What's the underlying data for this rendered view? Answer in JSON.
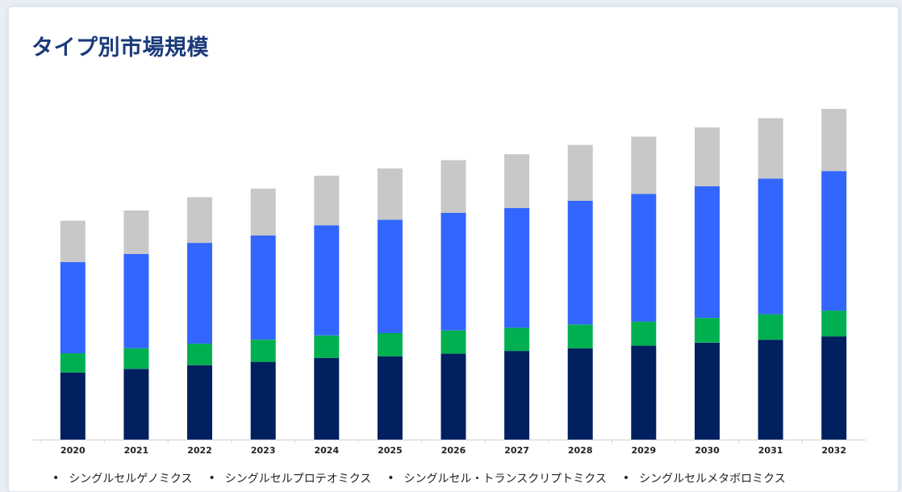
{
  "title": "タイプ別市場規模",
  "chart_data": {
    "type": "bar",
    "stacked": true,
    "title": "タイプ別市場規模",
    "xlabel": "",
    "ylabel": "",
    "grid": false,
    "legend_position": "bottom",
    "ylim": [
      0,
      100
    ],
    "categories": [
      "2020",
      "2021",
      "2022",
      "2023",
      "2024",
      "2025",
      "2026",
      "2027",
      "2028",
      "2029",
      "2030",
      "2031",
      "2032"
    ],
    "series": [
      {
        "name": "シングルセルゲノミクス",
        "color": "#002060",
        "values": [
          20.3,
          21.4,
          22.5,
          23.5,
          24.7,
          25.2,
          26.0,
          26.8,
          27.6,
          28.4,
          29.3,
          30.2,
          31.2
        ]
      },
      {
        "name": "シングルセルプロテオミクス",
        "color": "#00b050",
        "values": [
          5.8,
          6.2,
          6.5,
          6.7,
          6.8,
          7.0,
          7.0,
          7.0,
          7.2,
          7.3,
          7.5,
          7.7,
          7.8
        ]
      },
      {
        "name": "シングルセル・トランスクリプトミクス",
        "color": "#3366ff",
        "values": [
          27.6,
          28.5,
          30.5,
          31.5,
          33.3,
          34.3,
          35.6,
          36.2,
          37.4,
          38.6,
          39.8,
          41.0,
          42.2
        ]
      },
      {
        "name": "シングルセルメタボロミクス",
        "color": "#c8c8c8",
        "values": [
          12.5,
          13.2,
          13.8,
          14.2,
          15.0,
          15.5,
          15.9,
          16.3,
          16.9,
          17.3,
          17.8,
          18.3,
          18.8
        ]
      }
    ]
  }
}
